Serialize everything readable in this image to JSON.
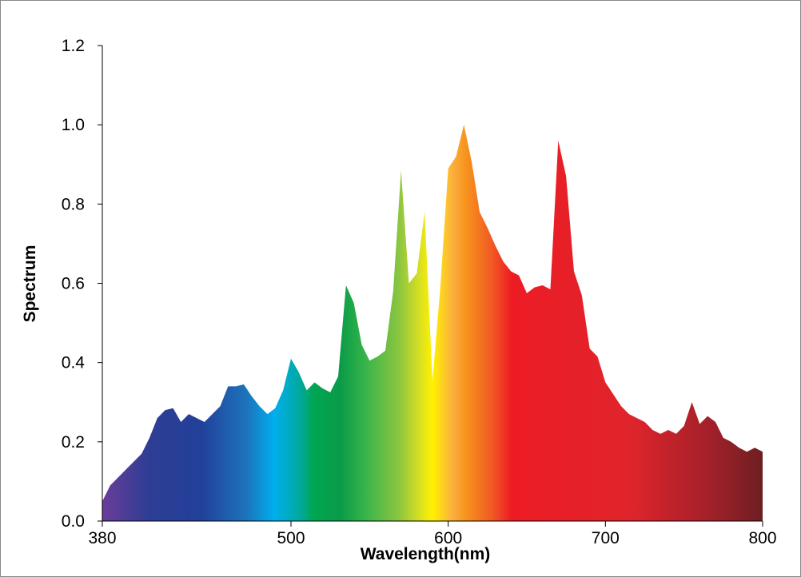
{
  "chart_data": {
    "type": "area",
    "xlabel": "Wavelength(nm)",
    "ylabel": "Spectrum",
    "x": [
      380,
      385,
      390,
      395,
      400,
      405,
      410,
      415,
      420,
      425,
      430,
      435,
      440,
      445,
      450,
      455,
      460,
      465,
      470,
      475,
      480,
      485,
      490,
      495,
      500,
      505,
      510,
      515,
      520,
      525,
      530,
      535,
      540,
      545,
      550,
      555,
      560,
      565,
      570,
      575,
      580,
      585,
      590,
      595,
      600,
      605,
      610,
      615,
      620,
      625,
      630,
      635,
      640,
      645,
      650,
      655,
      660,
      665,
      670,
      675,
      680,
      685,
      690,
      695,
      700,
      705,
      710,
      715,
      720,
      725,
      730,
      735,
      740,
      745,
      750,
      755,
      760,
      765,
      770,
      775,
      780,
      785,
      790,
      795,
      800
    ],
    "values": [
      0.05,
      0.09,
      0.11,
      0.13,
      0.15,
      0.17,
      0.21,
      0.26,
      0.28,
      0.285,
      0.25,
      0.27,
      0.26,
      0.25,
      0.27,
      0.29,
      0.34,
      0.34,
      0.345,
      0.315,
      0.29,
      0.27,
      0.285,
      0.33,
      0.41,
      0.375,
      0.33,
      0.35,
      0.335,
      0.325,
      0.365,
      0.595,
      0.55,
      0.445,
      0.405,
      0.415,
      0.43,
      0.58,
      0.885,
      0.6,
      0.625,
      0.78,
      0.355,
      0.59,
      0.89,
      0.92,
      1.0,
      0.905,
      0.78,
      0.74,
      0.695,
      0.655,
      0.63,
      0.62,
      0.575,
      0.59,
      0.595,
      0.585,
      0.96,
      0.87,
      0.63,
      0.57,
      0.435,
      0.415,
      0.35,
      0.32,
      0.29,
      0.27,
      0.26,
      0.25,
      0.23,
      0.22,
      0.23,
      0.22,
      0.24,
      0.3,
      0.245,
      0.265,
      0.25,
      0.21,
      0.2,
      0.185,
      0.175,
      0.185,
      0.175
    ],
    "xlim": [
      380,
      800
    ],
    "xticks": [
      380,
      500,
      600,
      700,
      800
    ],
    "ylim": [
      0,
      1.2
    ],
    "yticks": [
      {
        "value": 0,
        "label": "0.0"
      },
      0.2,
      0.4,
      0.6,
      0.8,
      {
        "value": 1,
        "label": "1.0"
      },
      1.2
    ],
    "grid": false
  }
}
